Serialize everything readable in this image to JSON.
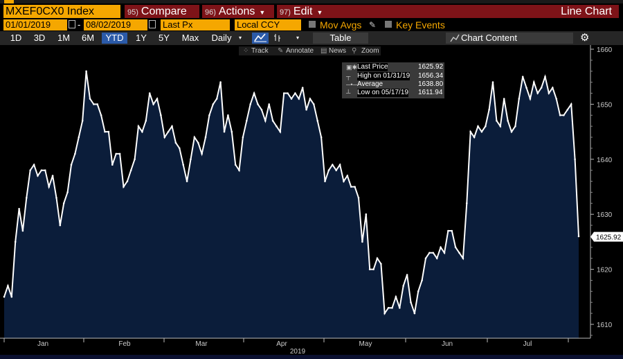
{
  "header": {
    "ticker": "MXEF0CX0 Index",
    "compare": {
      "num": "95)",
      "label": "Compare"
    },
    "actions": {
      "num": "96)",
      "label": "Actions"
    },
    "edit": {
      "num": "97)",
      "label": "Edit"
    },
    "chart_label": "Line Chart"
  },
  "controls": {
    "start_date": "01/01/2019",
    "end_date": "08/02/2019",
    "field": "Last Px",
    "currency": "Local CCY",
    "mov_avgs": "Mov Avgs",
    "key_events": "Key Events"
  },
  "ranges": {
    "items": [
      "1D",
      "3D",
      "1M",
      "6M",
      "YTD",
      "1Y",
      "5Y",
      "Max"
    ],
    "selected": "YTD",
    "frequency": "Daily",
    "table": "Table",
    "chart_content": "Chart Content"
  },
  "tools": {
    "track": "Track",
    "annotate": "Annotate",
    "news": "News",
    "zoom": "Zoom"
  },
  "legend": {
    "rows": [
      {
        "label": "Last Price",
        "value": "1625.92"
      },
      {
        "label": "High on 01/31/19",
        "value": "1656.34"
      },
      {
        "label": "Average",
        "value": "1638.80"
      },
      {
        "label": "Low on 05/17/19",
        "value": "1611.94"
      }
    ]
  },
  "colors": {
    "accent": "#f5a700",
    "header_red": "#7e1318",
    "area_fill": "#0b1d3a",
    "line": "#ffffff",
    "selected_range": "#2b5aa8"
  },
  "chart_data": {
    "type": "area",
    "ylim": [
      1607,
      1661
    ],
    "y_ticks": [
      1610,
      1620,
      1630,
      1640,
      1650,
      1660
    ],
    "x_labels": [
      "Jan",
      "Feb",
      "Mar",
      "Apr",
      "May",
      "Jun",
      "Jul"
    ],
    "x_axis_title": "2019",
    "last_value_label": "1625.92",
    "grid": false,
    "values": [
      1615,
      1617,
      1615,
      1625,
      1631,
      1627,
      1633,
      1638,
      1639,
      1637,
      1638,
      1638,
      1635,
      1637,
      1633,
      1628,
      1632,
      1634,
      1639,
      1641,
      1644,
      1647,
      1656,
      1651,
      1650,
      1650,
      1648,
      1645,
      1645,
      1639,
      1641,
      1641,
      1635,
      1636,
      1638,
      1640,
      1646,
      1645,
      1647,
      1652,
      1650,
      1651,
      1648,
      1644,
      1645,
      1646,
      1643,
      1642,
      1639,
      1636,
      1640,
      1644,
      1643,
      1641,
      1644,
      1648,
      1650,
      1651,
      1654,
      1645,
      1648,
      1645,
      1639,
      1638,
      1644,
      1647,
      1650,
      1652,
      1650,
      1649,
      1647,
      1650,
      1647,
      1646,
      1645,
      1652,
      1652,
      1651,
      1652,
      1651,
      1653,
      1649,
      1651,
      1650,
      1647,
      1644,
      1636,
      1638,
      1639,
      1638,
      1639,
      1636,
      1637,
      1635,
      1635,
      1633,
      1625,
      1630,
      1620,
      1620,
      1622,
      1621,
      1612,
      1613,
      1613,
      1615,
      1613,
      1617,
      1619,
      1614,
      1612,
      1616,
      1618,
      1622,
      1623,
      1623,
      1622,
      1624,
      1623,
      1627,
      1627,
      1624,
      1623,
      1622,
      1632,
      1645,
      1644,
      1646,
      1645,
      1646,
      1649,
      1654,
      1647,
      1646,
      1651,
      1647,
      1645,
      1646,
      1651,
      1655,
      1653,
      1651,
      1654,
      1652,
      1653,
      1655,
      1652,
      1653,
      1651,
      1648,
      1648,
      1649,
      1650,
      1640,
      1626
    ]
  }
}
